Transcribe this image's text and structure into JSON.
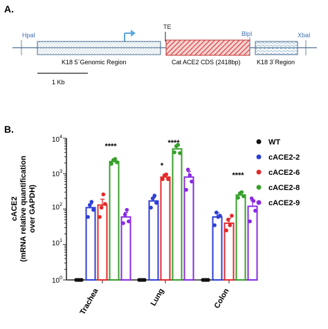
{
  "panel_a": {
    "label": "A.",
    "sites": {
      "hpal": "HpaI",
      "te": "TE",
      "blpl": "BlpI",
      "xbal": "XbaI"
    },
    "regions": {
      "k18_5": "K18 5´Genomic Region",
      "cat_ace2": "Cat ACE2 CDS (2418bp)",
      "k18_3": "K18 3´Region"
    },
    "scale_label": "1 Kb",
    "colors": {
      "arrow": "#5aa7e0",
      "cds": "#e03a3a",
      "box_stroke": "#4a6c8f",
      "hatch": "#7fa3bf"
    }
  },
  "panel_b": {
    "label": "B.",
    "ylabel_line1": "cACE2",
    "ylabel_line2": "(mRNA relative quantification",
    "ylabel_line3": "over GAPDH)",
    "y_ticks": {
      "t0": {
        "base": "10",
        "exp": "0"
      },
      "t1": {
        "base": "10",
        "exp": "1"
      },
      "t2": {
        "base": "10",
        "exp": "2"
      },
      "t3": {
        "base": "10",
        "exp": "3"
      },
      "t4": {
        "base": "10",
        "exp": "4"
      }
    },
    "legend": {
      "wt": "WT",
      "cace2_2": "cACE2-2",
      "cace2_6": "cACE2-6",
      "cace2_8": "cACE2-8",
      "cace2_9": "cACE2-9"
    },
    "significance": {
      "trachea": "****",
      "lung_6": "*",
      "lung_8": "****",
      "colon": "****"
    }
  },
  "chart_data": {
    "type": "bar",
    "categories": [
      "Trachea",
      "Lung",
      "Colon"
    ],
    "ylabel": "cACE2 (mRNA relative quantification over GAPDH)",
    "y_scale": "log",
    "ylim": [
      1,
      10000
    ],
    "legend_position": "right",
    "series": [
      {
        "name": "WT",
        "color": "#111111",
        "values": [
          1,
          1,
          1
        ],
        "error": [
          0,
          0,
          0
        ],
        "points": [
          [
            1,
            1,
            1,
            1
          ],
          [
            1,
            1,
            1,
            1
          ],
          [
            1,
            1,
            1,
            1
          ]
        ]
      },
      {
        "name": "cACE2-2",
        "color": "#2e3fd6",
        "values": [
          110,
          170,
          60
        ],
        "error": [
          30,
          40,
          18
        ],
        "points": [
          [
            60,
            130,
            160,
            95
          ],
          [
            110,
            200,
            240,
            150
          ],
          [
            35,
            80,
            60,
            65
          ]
        ]
      },
      {
        "name": "cACE2-6",
        "color": "#e42a2a",
        "values": [
          130,
          800,
          40
        ],
        "error": [
          60,
          120,
          15
        ],
        "points": [
          [
            60,
            110,
            260,
            140
          ],
          [
            700,
            900,
            950,
            700
          ],
          [
            25,
            50,
            35,
            65
          ]
        ]
      },
      {
        "name": "cACE2-8",
        "color": "#36a02a",
        "values": [
          2200,
          5000,
          250
        ],
        "error": [
          400,
          1200,
          40
        ],
        "points": [
          [
            1900,
            2400,
            2600,
            2100
          ],
          [
            4000,
            6000,
            6500,
            3800
          ],
          [
            210,
            280,
            300,
            230
          ]
        ]
      },
      {
        "name": "cACE2-9",
        "color": "#8a2be2",
        "values": [
          60,
          800,
          120
        ],
        "error": [
          20,
          350,
          50
        ],
        "points": [
          [
            40,
            70,
            95,
            45
          ],
          [
            350,
            1300,
            900,
            600
          ],
          [
            45,
            200,
            170,
            90
          ]
        ]
      }
    ]
  }
}
